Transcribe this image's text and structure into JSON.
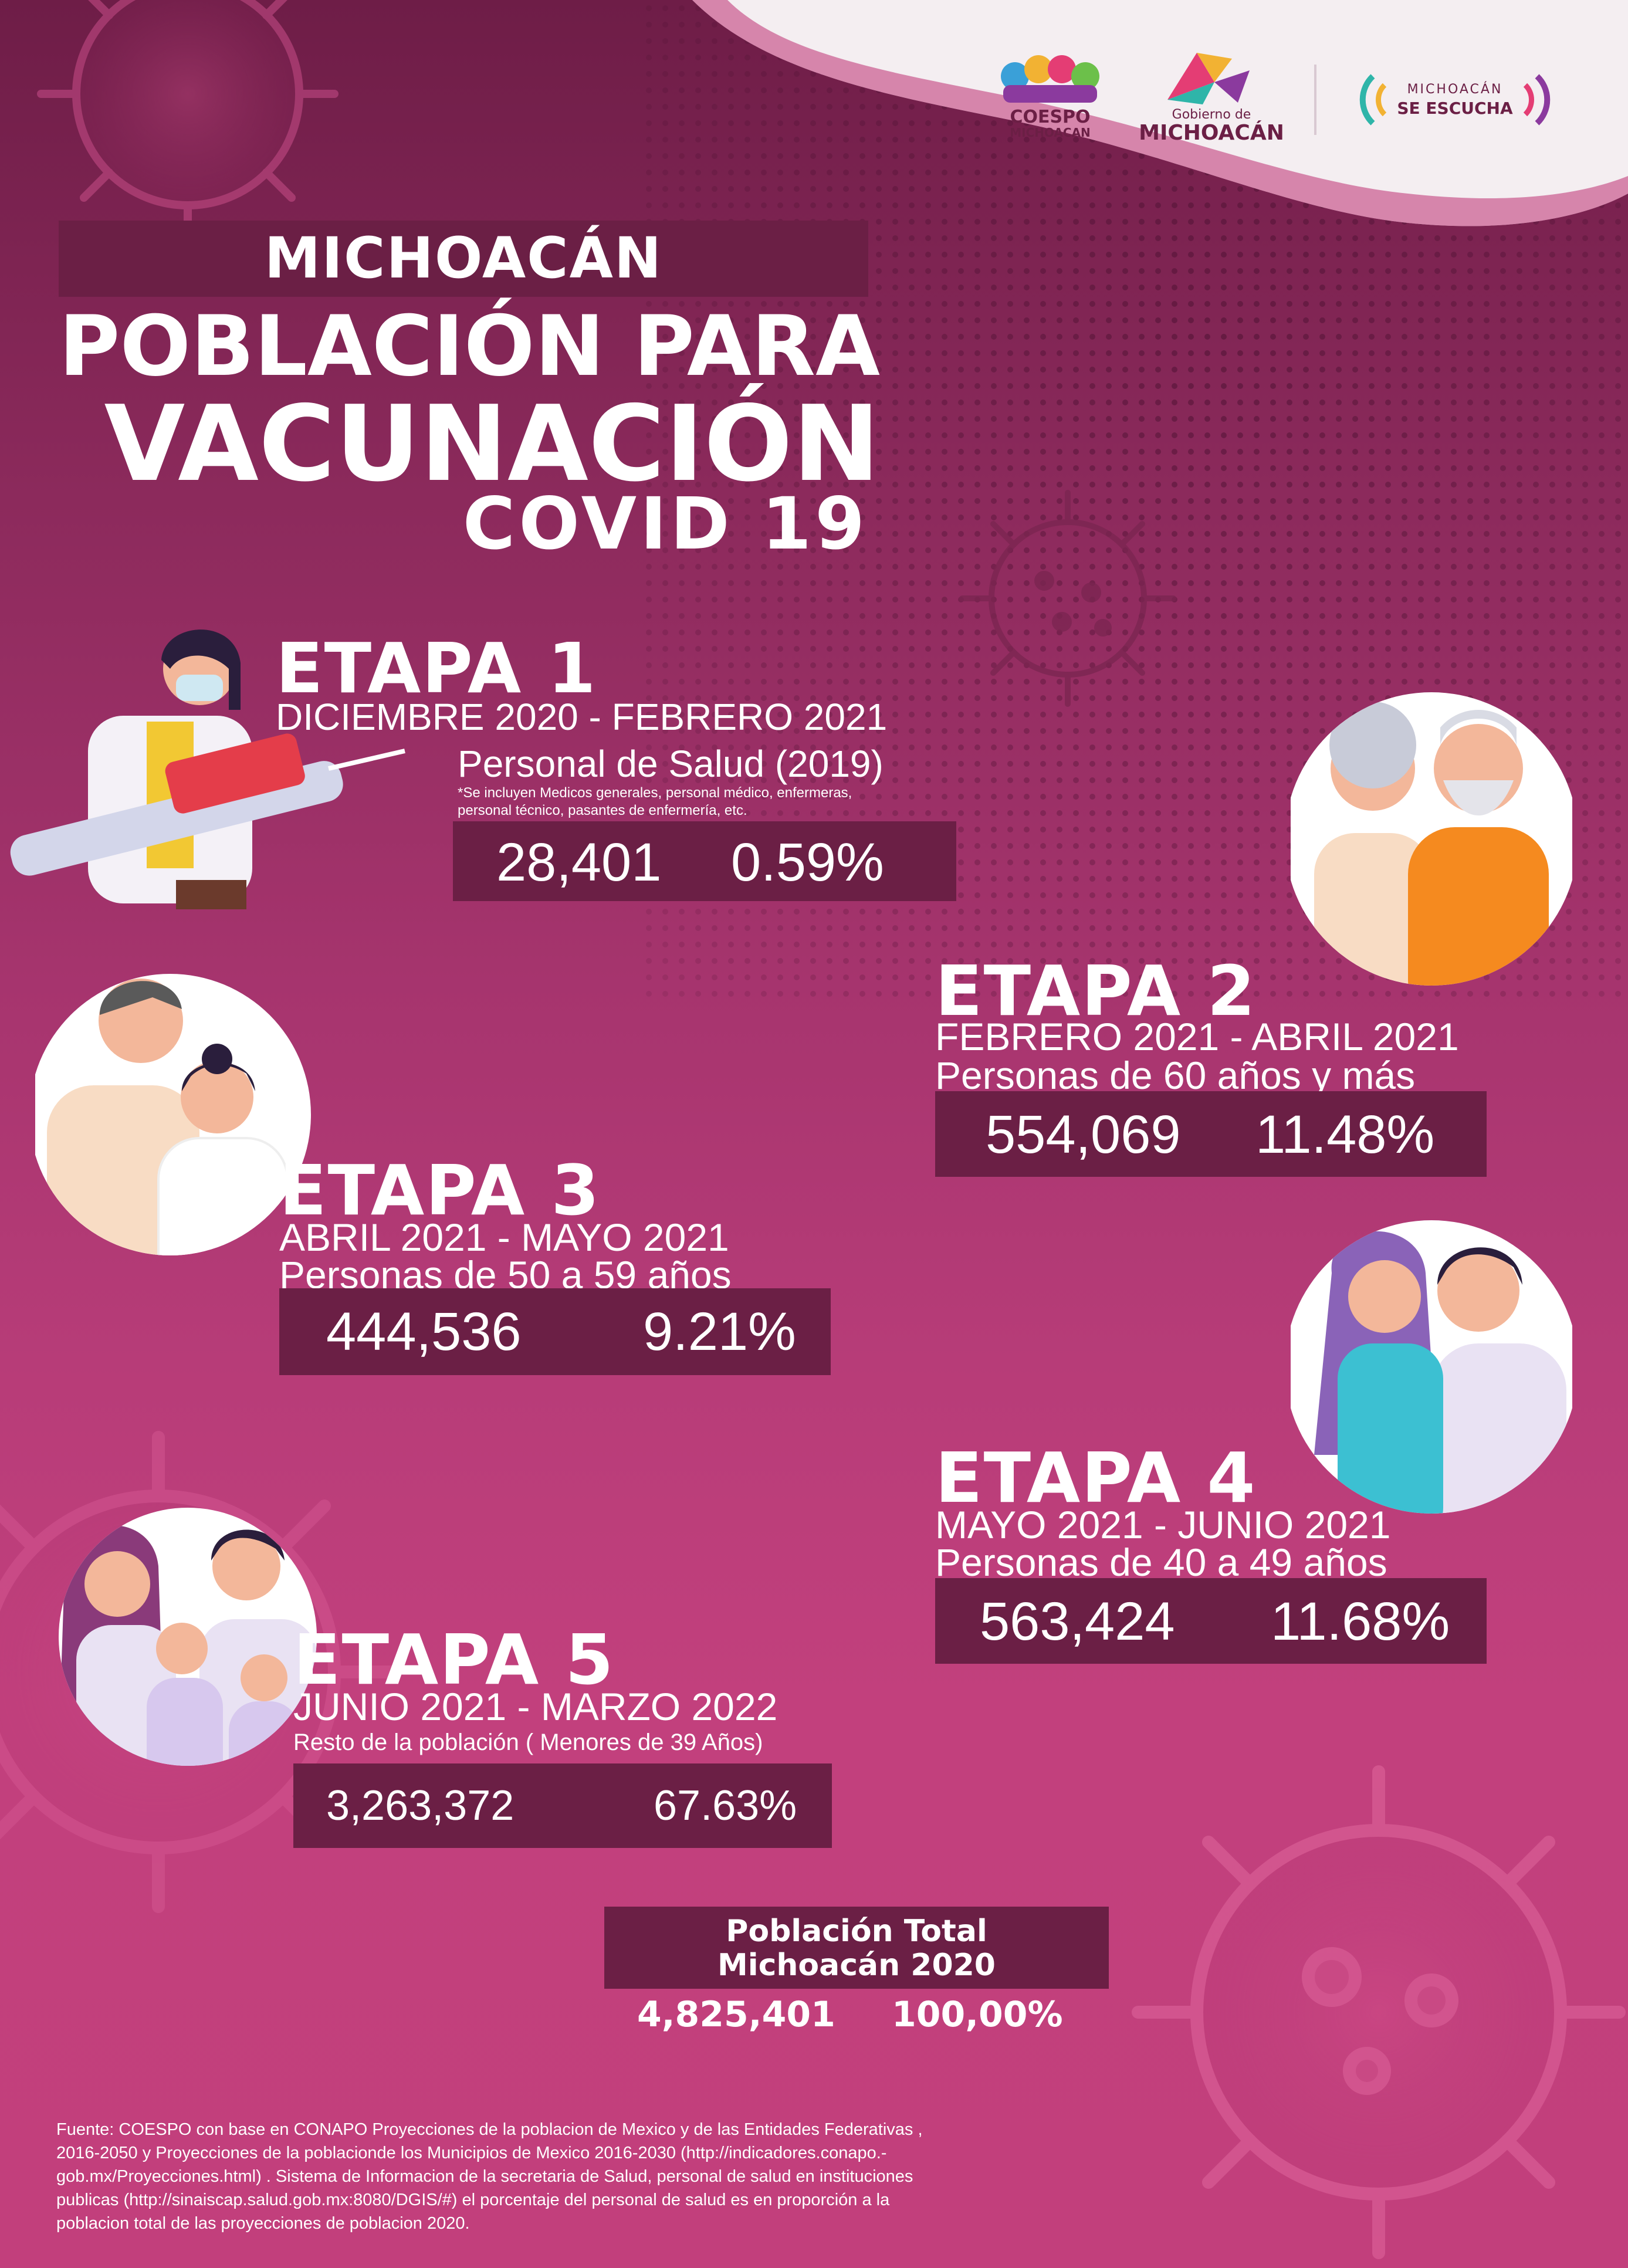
{
  "header": {
    "kicker": "MICHOACÁN",
    "title_line1": "POBLACIÓN PARA",
    "title_line2": "VACUNACIÓN",
    "title_line3": "COVID  19"
  },
  "logos": {
    "coespo_line1": "COESPO",
    "coespo_line2": "MICHOACAN",
    "gobierno_line1": "Gobierno de",
    "gobierno_line2": "MICHOACÁN",
    "escucha_line1": "MICHOACÁN",
    "escucha_line2": "SE ESCUCHA"
  },
  "stages": [
    {
      "title": "ETAPA 1",
      "dates": "DICIEMBRE 2020 - FEBRERO 2021",
      "group": "Personal de Salud (2019)",
      "note_line1": "*Se incluyen Medicos generales, personal médico, enfermeras,",
      "note_line2": "personal técnico, pasantes de enfermería, etc.",
      "count": "28,401",
      "percent": "0.59%"
    },
    {
      "title": "ETAPA 2",
      "dates": "FEBRERO 2021 - ABRIL 2021",
      "group": "Personas de 60 años y más",
      "count": "554,069",
      "percent": "11.48%"
    },
    {
      "title": "ETAPA 3",
      "dates": "ABRIL 2021 - MAYO 2021",
      "group": "Personas de 50 a 59 años",
      "count": "444,536",
      "percent": "9.21%"
    },
    {
      "title": "ETAPA 4",
      "dates": "MAYO 2021 - JUNIO 2021",
      "group": "Personas de 40 a 49 años",
      "count": "563,424",
      "percent": "11.68%"
    },
    {
      "title": "ETAPA 5",
      "dates": "JUNIO 2021 - MARZO 2022",
      "group": "Resto de la población ( Menores de 39 Años)",
      "count": "3,263,372",
      "percent": "67.63%"
    }
  ],
  "total": {
    "label_line1": "Población Total",
    "label_line2": "Michoacán 2020",
    "count": "4,825,401",
    "percent": "100,00%"
  },
  "source": {
    "line1": "Fuente: COESPO con base en CONAPO Proyecciones de la poblacion de Mexico y de las Entidades Federativas ,",
    "line2": "2016-2050 y Proyecciones de la poblacionde los Municipios de Mexico 2016-2030 (http://indicadores.conapo.-",
    "line3": "gob.mx/Proyecciones.html) . Sistema de Informacion de la secretaria de Salud, personal de salud en instituciones",
    "line4": "publicas (http://sinaiscap.salud.gob.mx:8080/DGIS/#) el porcentaje del personal de salud es en proporción a la",
    "line5": "poblacion total de las proyecciones de poblacion 2020."
  },
  "colors": {
    "band": "#6b1f45",
    "background_top": "#6e1d47",
    "background_bottom": "#c2407d",
    "text": "#ffffff"
  },
  "icons": [
    "virus-icon",
    "health-worker-illustration",
    "elderly-couple-illustration",
    "middle-age-couple-illustration",
    "young-couple-illustration",
    "family-illustration"
  ]
}
